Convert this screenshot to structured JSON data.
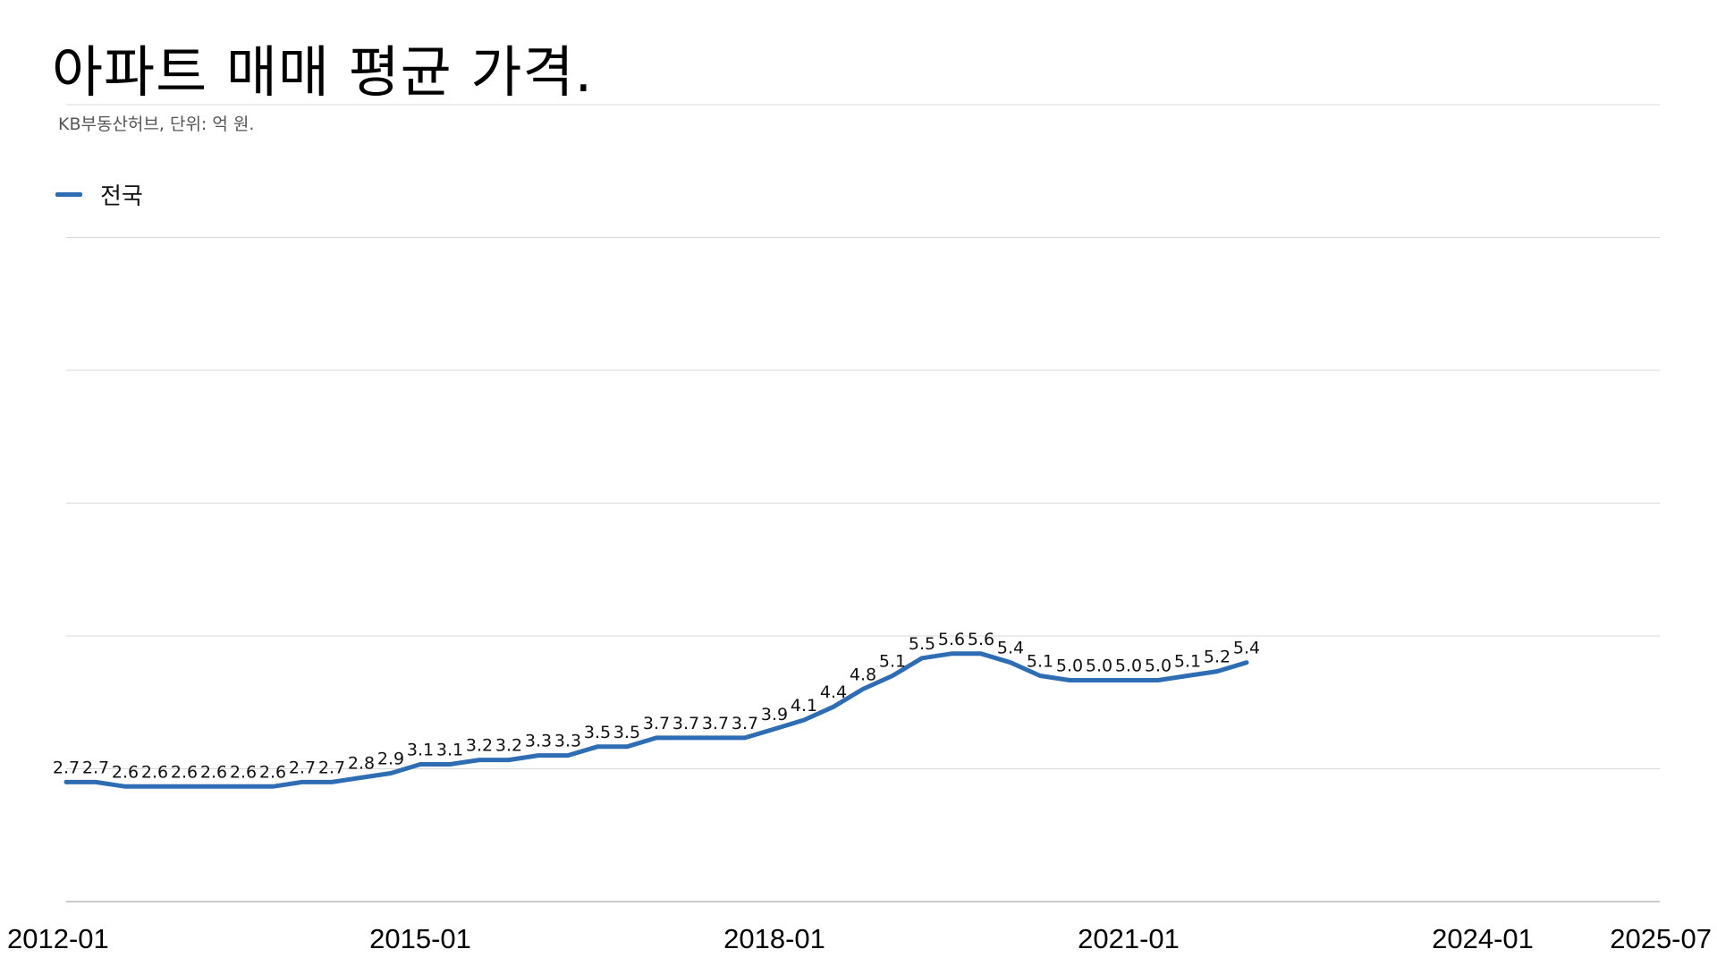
{
  "chart_data": {
    "type": "line",
    "title": "아파트 매매 평균 가격.",
    "subtitle": "KB부동산허브, 단위: 억 원.",
    "x_start": "2012-01",
    "x_end": "2025-07",
    "x_ticks": [
      "2012-01",
      "2015-01",
      "2018-01",
      "2021-01",
      "2024-01",
      "2025-07"
    ],
    "ylim": [
      0,
      18
    ],
    "grid": true,
    "legend": "top-left",
    "series": [
      {
        "name": "전국",
        "color": "#2e6db3",
        "points": [
          [
            "2012-01",
            2.7
          ],
          [
            "2012-04",
            2.7
          ],
          [
            "2012-07",
            2.6
          ],
          [
            "2012-10",
            2.6
          ],
          [
            "2013-01",
            2.6
          ],
          [
            "2013-04",
            2.6
          ],
          [
            "2013-07",
            2.6
          ],
          [
            "2013-10",
            2.6
          ],
          [
            "2014-01",
            2.7
          ],
          [
            "2014-04",
            2.7
          ],
          [
            "2014-07",
            2.8
          ],
          [
            "2014-10",
            2.9
          ],
          [
            "2015-01",
            3.1
          ],
          [
            "2015-04",
            3.1
          ],
          [
            "2015-07",
            3.2
          ],
          [
            "2015-10",
            3.2
          ],
          [
            "2016-01",
            3.3
          ],
          [
            "2016-04",
            3.3
          ],
          [
            "2016-07",
            3.5
          ],
          [
            "2016-10",
            3.5
          ],
          [
            "2017-01",
            3.7
          ],
          [
            "2017-04",
            3.7
          ],
          [
            "2017-07",
            3.7
          ],
          [
            "2017-10",
            3.7
          ],
          [
            "2018-01",
            3.9
          ],
          [
            "2018-04",
            4.1
          ],
          [
            "2018-07",
            4.4
          ],
          [
            "2018-10",
            4.8
          ],
          [
            "2019-01",
            5.1
          ],
          [
            "2019-04",
            5.5
          ],
          [
            "2019-07",
            5.6
          ],
          [
            "2019-10",
            5.6
          ],
          [
            "2020-01",
            5.4
          ],
          [
            "2020-04",
            5.1
          ],
          [
            "2020-07",
            5.0
          ],
          [
            "2020-10",
            5.0
          ],
          [
            "2021-01",
            5.0
          ],
          [
            "2021-04",
            5.0
          ],
          [
            "2021-07",
            5.1
          ],
          [
            "2021-10",
            5.2
          ],
          [
            "2022-01",
            5.4
          ]
        ],
        "labeled_points": [
          [
            "2012-01",
            2.7
          ],
          [
            "2012-04",
            2.7
          ],
          [
            "2012-07",
            2.6
          ],
          [
            "2012-10",
            2.6
          ],
          [
            "2013-01",
            2.6
          ],
          [
            "2013-04",
            2.6
          ],
          [
            "2013-07",
            2.6
          ],
          [
            "2013-10",
            2.6
          ],
          [
            "2014-01",
            2.7
          ],
          [
            "2014-04",
            2.7
          ],
          [
            "2014-07",
            2.8
          ],
          [
            "2014-10",
            2.9
          ],
          [
            "2015-01",
            3.1
          ],
          [
            "2015-04",
            3.1
          ],
          [
            "2015-07",
            3.2
          ],
          [
            "2015-10",
            3.2
          ],
          [
            "2016-01",
            3.3
          ],
          [
            "2016-04",
            3.3
          ],
          [
            "2016-07",
            3.5
          ],
          [
            "2016-10",
            3.5
          ],
          [
            "2017-01",
            3.7
          ],
          [
            "2017-04",
            3.7
          ],
          [
            "2017-07",
            3.7
          ],
          [
            "2017-10",
            3.7
          ],
          [
            "2018-01",
            3.9
          ],
          [
            "2018-04",
            4.1
          ],
          [
            "2018-07",
            4.4
          ],
          [
            "2018-10",
            4.8
          ],
          [
            "2019-01",
            5.1
          ],
          [
            "2019-04",
            5.5
          ],
          [
            "2019-07",
            5.6
          ],
          [
            "2019-10",
            5.6
          ],
          [
            "2020-01",
            5.4
          ],
          [
            "2020-04",
            5.1
          ],
          [
            "2020-07",
            5.0
          ],
          [
            "2020-10",
            5.0
          ],
          [
            "2021-01",
            5.0
          ],
          [
            "2021-04",
            5.0
          ],
          [
            "2021-07",
            5.1
          ],
          [
            "2021-10",
            5.2
          ],
          [
            "2022-01",
            5.4
          ]
        ]
      }
    ]
  }
}
